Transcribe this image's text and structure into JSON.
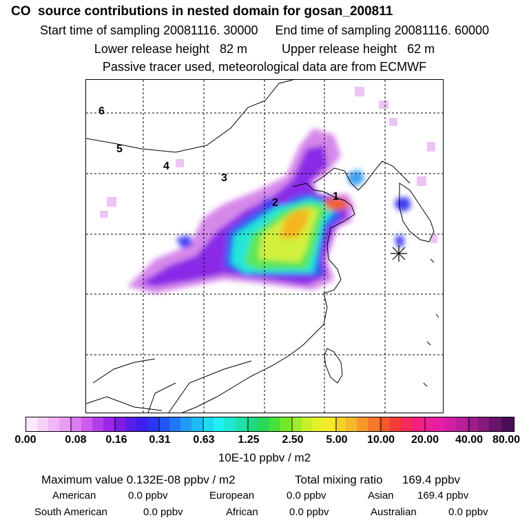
{
  "header": {
    "title": "CO  source contributions in nested domain for gosan_200811",
    "line2": "Start time of sampling 20081116. 30000     End time of sampling 20081116. 60000",
    "line3": "Lower release height   82 m          Upper release height   62 m",
    "line4": "Passive tracer used, meteorological data are from ECMWF"
  },
  "map": {
    "receptor_labels": [
      "1",
      "2",
      "3",
      "4",
      "5",
      "6"
    ],
    "marker_icon": "star-burst-icon"
  },
  "colorbar": {
    "ticks": [
      "0.00",
      "0.08",
      "0.16",
      "0.31",
      "0.63",
      "1.25",
      "2.50",
      "5.00",
      "10.00",
      "20.00",
      "40.00",
      "80.00"
    ],
    "units": "10E-10 ppbv / m2"
  },
  "stats": {
    "max_label": "Maximum value  0.132E-08 ppbv / m2",
    "total_label": "Total mixing ratio      169.4 ppbv",
    "american_label": "American",
    "american_value": "0.0 ppbv",
    "european_label": "European",
    "european_value": "0.0 ppbv",
    "asian_label": "Asian",
    "asian_value": "169.4 ppbv",
    "south_american_label": "South American",
    "south_american_value": "0.0 ppbv",
    "african_label": "African",
    "african_value": "0.0 ppbv",
    "australian_label": "Australian",
    "australian_value": "0.0 ppbv"
  }
}
